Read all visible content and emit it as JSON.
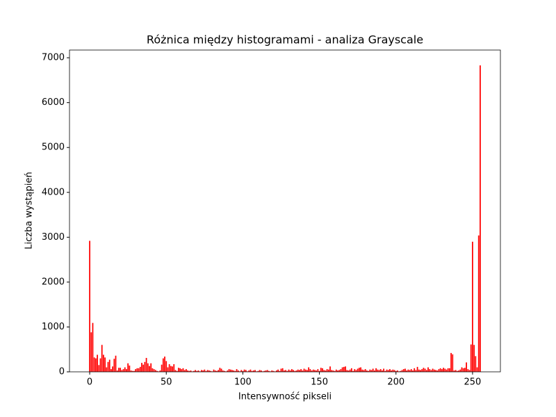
{
  "chart_data": {
    "type": "bar",
    "title": "Różnica między histogramami - analiza Grayscale",
    "x_label": "Intensywność pikseli",
    "y_label": "Liczba wystąpień",
    "color": "#ff0000",
    "xlim": [
      -13.19,
      268.19
    ],
    "ylim": [
      0,
      7172
    ],
    "xticks": [
      0,
      50,
      100,
      150,
      200,
      250
    ],
    "yticks": [
      0,
      1000,
      2000,
      3000,
      4000,
      5000,
      6000,
      7000
    ],
    "x": [
      0,
      1,
      2,
      3,
      4,
      5,
      6,
      7,
      8,
      9,
      10,
      11,
      12,
      13,
      14,
      15,
      16,
      17,
      18,
      19,
      20,
      21,
      22,
      23,
      24,
      25,
      26,
      27,
      28,
      29,
      30,
      31,
      32,
      33,
      34,
      35,
      36,
      37,
      38,
      39,
      40,
      41,
      42,
      43,
      44,
      45,
      46,
      47,
      48,
      49,
      50,
      51,
      52,
      53,
      54,
      55,
      56,
      57,
      58,
      59,
      60,
      61,
      62,
      63,
      64,
      65,
      66,
      67,
      68,
      69,
      70,
      71,
      72,
      73,
      74,
      75,
      76,
      77,
      78,
      79,
      80,
      81,
      82,
      83,
      84,
      85,
      86,
      87,
      88,
      89,
      90,
      91,
      92,
      93,
      94,
      95,
      96,
      97,
      98,
      99,
      100,
      101,
      102,
      103,
      104,
      105,
      106,
      107,
      108,
      109,
      110,
      111,
      112,
      113,
      114,
      115,
      116,
      117,
      118,
      119,
      120,
      121,
      122,
      123,
      124,
      125,
      126,
      127,
      128,
      129,
      130,
      131,
      132,
      133,
      134,
      135,
      136,
      137,
      138,
      139,
      140,
      141,
      142,
      143,
      144,
      145,
      146,
      147,
      148,
      149,
      150,
      151,
      152,
      153,
      154,
      155,
      156,
      157,
      158,
      159,
      160,
      161,
      162,
      163,
      164,
      165,
      166,
      167,
      168,
      169,
      170,
      171,
      172,
      173,
      174,
      175,
      176,
      177,
      178,
      179,
      180,
      181,
      182,
      183,
      184,
      185,
      186,
      187,
      188,
      189,
      190,
      191,
      192,
      193,
      194,
      195,
      196,
      197,
      198,
      199,
      200,
      201,
      202,
      203,
      204,
      205,
      206,
      207,
      208,
      209,
      210,
      211,
      212,
      213,
      214,
      215,
      216,
      217,
      218,
      219,
      220,
      221,
      222,
      223,
      224,
      225,
      226,
      227,
      228,
      229,
      230,
      231,
      232,
      233,
      234,
      235,
      236,
      237,
      238,
      239,
      240,
      241,
      242,
      243,
      244,
      245,
      246,
      247,
      248,
      249,
      250,
      251,
      252,
      253,
      254,
      255
    ],
    "values": [
      2920,
      880,
      1090,
      320,
      300,
      380,
      150,
      300,
      600,
      380,
      320,
      100,
      220,
      270,
      60,
      120,
      290,
      360,
      30,
      90,
      90,
      40,
      60,
      100,
      60,
      190,
      140,
      30,
      20,
      20,
      60,
      80,
      80,
      110,
      200,
      160,
      220,
      310,
      190,
      130,
      190,
      80,
      60,
      40,
      20,
      10,
      30,
      160,
      300,
      340,
      240,
      100,
      170,
      130,
      120,
      170,
      40,
      20,
      90,
      80,
      60,
      80,
      40,
      60,
      30,
      20,
      30,
      10,
      20,
      40,
      20,
      30,
      10,
      40,
      30,
      50,
      20,
      40,
      30,
      20,
      10,
      50,
      30,
      20,
      40,
      90,
      70,
      30,
      20,
      10,
      30,
      60,
      50,
      40,
      30,
      20,
      60,
      30,
      10,
      40,
      20,
      50,
      40,
      10,
      30,
      50,
      20,
      30,
      40,
      10,
      20,
      40,
      30,
      10,
      20,
      30,
      40,
      20,
      10,
      30,
      20,
      10,
      30,
      50,
      20,
      70,
      80,
      30,
      40,
      20,
      50,
      30,
      60,
      40,
      20,
      30,
      50,
      40,
      60,
      30,
      70,
      50,
      40,
      100,
      60,
      30,
      50,
      40,
      30,
      60,
      20,
      90,
      80,
      40,
      30,
      60,
      50,
      120,
      40,
      30,
      20,
      50,
      30,
      40,
      60,
      100,
      110,
      120,
      40,
      30,
      50,
      80,
      20,
      60,
      40,
      70,
      90,
      100,
      50,
      40,
      60,
      30,
      20,
      50,
      40,
      70,
      30,
      80,
      50,
      40,
      60,
      30,
      70,
      20,
      50,
      40,
      60,
      30,
      50,
      40,
      20,
      30,
      10,
      20,
      40,
      60,
      70,
      30,
      50,
      40,
      60,
      30,
      80,
      40,
      110,
      50,
      40,
      60,
      90,
      70,
      40,
      100,
      60,
      40,
      70,
      50,
      40,
      30,
      60,
      80,
      60,
      90,
      70,
      50,
      80,
      80,
      420,
      390,
      30,
      40,
      20,
      30,
      50,
      100,
      80,
      90,
      210,
      60,
      40,
      610,
      2900,
      600,
      350,
      100,
      3040,
      6830
    ]
  }
}
